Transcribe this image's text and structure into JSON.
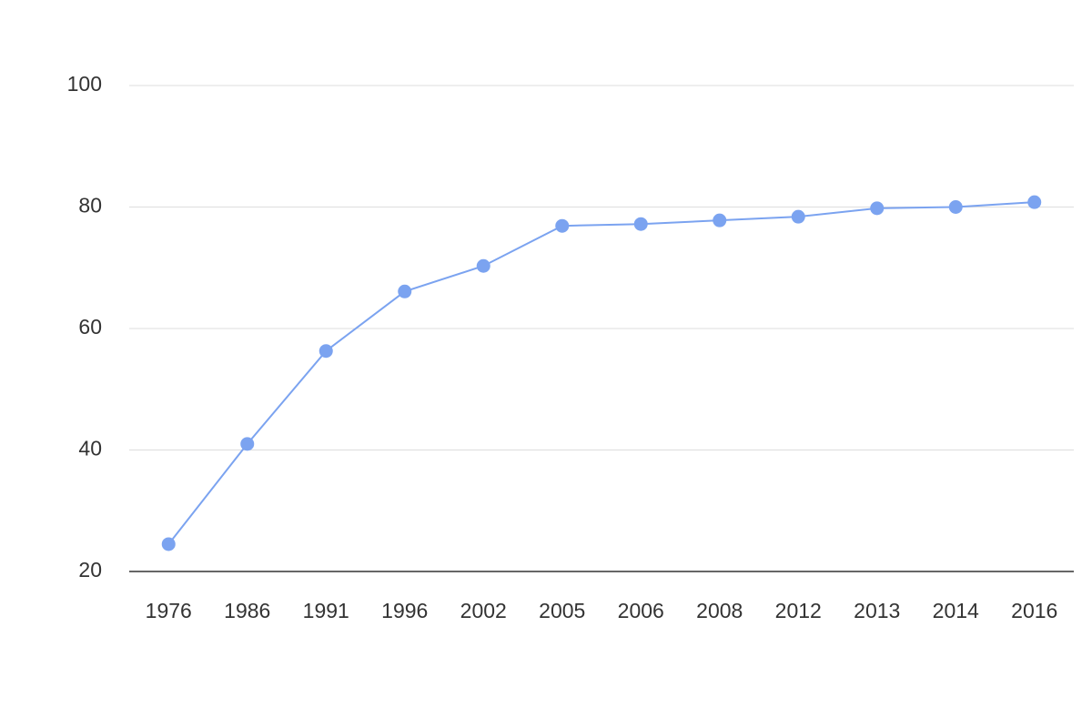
{
  "chart_data": {
    "type": "line",
    "categories": [
      "1976",
      "1986",
      "1991",
      "1996",
      "2002",
      "2005",
      "2006",
      "2008",
      "2012",
      "2013",
      "2014",
      "2016"
    ],
    "series": [
      {
        "color": "#7ba3f0",
        "values": [
          24.5,
          41.0,
          56.3,
          66.1,
          70.3,
          76.9,
          77.2,
          77.8,
          78.4,
          79.8,
          80.0,
          80.8
        ]
      }
    ],
    "ylim": [
      20,
      100
    ],
    "yticks": [
      20,
      40,
      60,
      80,
      100
    ],
    "grid": true
  }
}
